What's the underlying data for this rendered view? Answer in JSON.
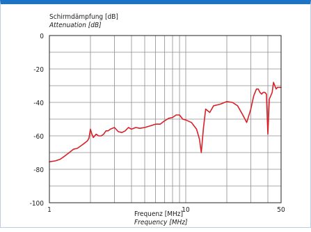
{
  "chart_data": {
    "type": "line",
    "ylabel_de": "Schirmdämpfung [dB]",
    "ylabel_en": "Attenuation [dB]",
    "xlabel_de": "Frequenz [MHz]",
    "xlabel_en": "Frequency [MHz]",
    "x_scale": "log",
    "xlim": [
      1,
      50
    ],
    "ylim": [
      -100,
      0
    ],
    "x_tick_labels": [
      "1",
      "10",
      "50"
    ],
    "y_tick_labels": [
      "0",
      "-20",
      "-40",
      "-60",
      "-80",
      "-100"
    ],
    "grid": true,
    "series": [
      {
        "color": "#d92027",
        "x": [
          1.0,
          1.1,
          1.2,
          1.3,
          1.4,
          1.5,
          1.6,
          1.7,
          1.8,
          1.9,
          1.95,
          2.0,
          2.05,
          2.1,
          2.2,
          2.3,
          2.4,
          2.5,
          2.6,
          2.7,
          2.8,
          3.0,
          3.2,
          3.4,
          3.6,
          3.8,
          4.0,
          4.3,
          4.6,
          5.0,
          5.5,
          6.0,
          6.5,
          7.0,
          7.5,
          8.0,
          8.5,
          9.0,
          9.5,
          10.0,
          11.0,
          12.0,
          12.6,
          13.0,
          13.5,
          14.0,
          15.0,
          16.0,
          17.0,
          18.0,
          20.0,
          22.0,
          24.0,
          26.0,
          28.0,
          30.0,
          31.5,
          33.0,
          34.0,
          35.0,
          36.0,
          37.0,
          38.0,
          39.0,
          40.0,
          41.0,
          42.0,
          43.0,
          44.0,
          45.0,
          46.0,
          47.0,
          48.0,
          49.0,
          50.0
        ],
        "y": [
          -75.5,
          -75,
          -74,
          -72,
          -70,
          -68,
          -67.5,
          -66,
          -64.5,
          -63,
          -61.5,
          -56,
          -59,
          -61,
          -59,
          -60,
          -60,
          -59,
          -57,
          -57,
          -56,
          -55,
          -57.5,
          -58,
          -57,
          -55,
          -56,
          -55,
          -55.5,
          -55,
          -54,
          -53,
          -53,
          -51,
          -49.5,
          -49,
          -47.5,
          -47.5,
          -50,
          -50.5,
          -52,
          -56,
          -62,
          -70,
          -55,
          -44,
          -46,
          -42,
          -41.5,
          -41,
          -39.5,
          -40,
          -42,
          -47,
          -52,
          -44,
          -36,
          -32,
          -32,
          -34,
          -35,
          -34,
          -34,
          -35,
          -59,
          -38,
          -36,
          -34,
          -28,
          -30,
          -32,
          -31,
          -31,
          -31,
          -31
        ]
      }
    ]
  }
}
